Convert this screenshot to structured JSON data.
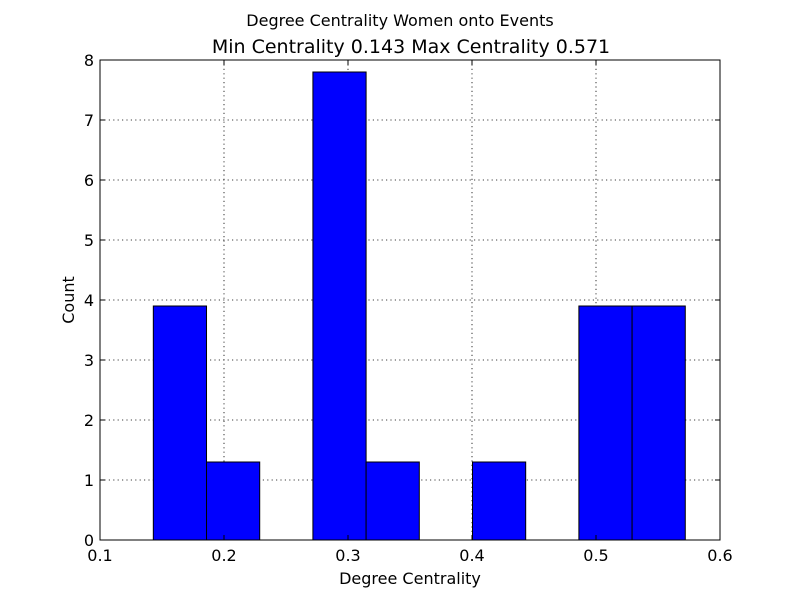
{
  "chart_data": {
    "type": "bar",
    "suptitle": "Degree Centrality Women onto Events",
    "title": "Min Centrality 0.143 Max Centrality 0.571",
    "xlabel": "Degree Centrality",
    "ylabel": "Count",
    "xlim": [
      0.1,
      0.6
    ],
    "ylim": [
      0,
      8
    ],
    "xticks": [
      0.1,
      0.2,
      0.3,
      0.4,
      0.5,
      0.6
    ],
    "xtick_labels": [
      "0.1",
      "0.2",
      "0.3",
      "0.4",
      "0.5",
      "0.6"
    ],
    "yticks": [
      0,
      1,
      2,
      3,
      4,
      5,
      6,
      7,
      8
    ],
    "ytick_labels": [
      "0",
      "1",
      "2",
      "3",
      "4",
      "5",
      "6",
      "7",
      "8"
    ],
    "grid": true,
    "bar_color": "#0000ff",
    "bins": [
      {
        "x0": 0.143,
        "x1": 0.1859,
        "count": 3.9
      },
      {
        "x0": 0.1859,
        "x1": 0.2288,
        "count": 1.3
      },
      {
        "x0": 0.2288,
        "x1": 0.2717,
        "count": 0
      },
      {
        "x0": 0.2717,
        "x1": 0.3146,
        "count": 7.8
      },
      {
        "x0": 0.3146,
        "x1": 0.3575,
        "count": 1.3
      },
      {
        "x0": 0.3575,
        "x1": 0.4004,
        "count": 0
      },
      {
        "x0": 0.4004,
        "x1": 0.4433,
        "count": 1.3
      },
      {
        "x0": 0.4433,
        "x1": 0.4862,
        "count": 0
      },
      {
        "x0": 0.4862,
        "x1": 0.5291,
        "count": 3.9
      },
      {
        "x0": 0.5291,
        "x1": 0.572,
        "count": 3.9
      }
    ]
  }
}
